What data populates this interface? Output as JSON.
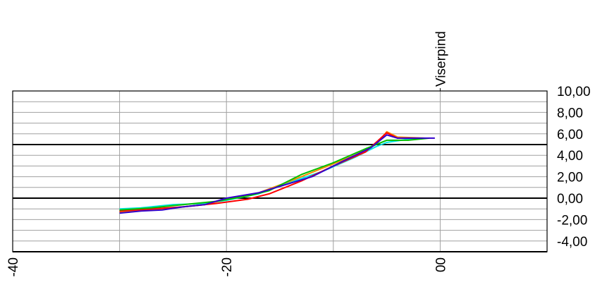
{
  "chart_data": {
    "type": "line",
    "title": "",
    "xlabel": "",
    "ylabel": "",
    "xlim": [
      -40,
      10
    ],
    "ylim": [
      -5,
      10
    ],
    "x_ticks": [
      {
        "value": -40,
        "label": "-40"
      },
      {
        "value": -20,
        "label": "-20"
      },
      {
        "value": 0,
        "label": "00"
      }
    ],
    "y_ticks": [
      {
        "value": 10,
        "label": "10,00"
      },
      {
        "value": 8,
        "label": "8,00"
      },
      {
        "value": 6,
        "label": "6,00"
      },
      {
        "value": 4,
        "label": "4,00"
      },
      {
        "value": 2,
        "label": "2,00"
      },
      {
        "value": 0,
        "label": "0,00"
      },
      {
        "value": -2,
        "label": "-2,00"
      },
      {
        "value": -4,
        "label": "-4,00"
      }
    ],
    "bold_y_lines": [
      5,
      0,
      -5
    ],
    "vertical_marker": {
      "x": 0,
      "label": "Viserpind"
    },
    "grid": true,
    "series": [
      {
        "color": "#00e5e5",
        "points": [
          [
            -30,
            -1.0
          ],
          [
            -28,
            -0.9
          ],
          [
            -25,
            -0.6
          ],
          [
            -22,
            -0.5
          ],
          [
            -20,
            -0.2
          ],
          [
            -17,
            0.4
          ],
          [
            -14,
            1.5
          ],
          [
            -11,
            2.5
          ],
          [
            -8,
            3.8
          ],
          [
            -6,
            4.8
          ],
          [
            -5,
            5.2
          ],
          [
            -3,
            5.5
          ],
          [
            -2,
            5.6
          ]
        ]
      },
      {
        "color": "#ff8c00",
        "points": [
          [
            -30,
            -1.3
          ],
          [
            -27,
            -1.1
          ],
          [
            -24,
            -0.8
          ],
          [
            -22,
            -0.6
          ],
          [
            -20,
            -0.1
          ],
          [
            -17,
            0.5
          ],
          [
            -14,
            1.6
          ],
          [
            -11,
            2.8
          ],
          [
            -8,
            4.0
          ],
          [
            -6,
            5.0
          ],
          [
            -5,
            6.2
          ],
          [
            -4,
            5.7
          ],
          [
            -1.5,
            5.6
          ]
        ]
      },
      {
        "color": "#ff0000",
        "points": [
          [
            -30,
            -1.2
          ],
          [
            -27,
            -1.0
          ],
          [
            -24,
            -0.8
          ],
          [
            -21,
            -0.5
          ],
          [
            -18,
            -0.1
          ],
          [
            -16,
            0.4
          ],
          [
            -13,
            1.6
          ],
          [
            -10,
            3.0
          ],
          [
            -7,
            4.3
          ],
          [
            -5,
            6.1
          ],
          [
            -4,
            5.6
          ],
          [
            -2,
            5.6
          ]
        ]
      },
      {
        "color": "#00c000",
        "points": [
          [
            -30,
            -1.1
          ],
          [
            -27,
            -0.9
          ],
          [
            -24,
            -0.6
          ],
          [
            -21,
            -0.3
          ],
          [
            -18,
            0.2
          ],
          [
            -16,
            0.7
          ],
          [
            -13,
            2.2
          ],
          [
            -10,
            3.3
          ],
          [
            -7,
            4.6
          ],
          [
            -5,
            5.4
          ],
          [
            -3,
            5.4
          ],
          [
            -1,
            5.6
          ]
        ]
      },
      {
        "color": "#3300cc",
        "points": [
          [
            -30,
            -1.4
          ],
          [
            -28,
            -1.2
          ],
          [
            -26,
            -1.1
          ],
          [
            -24,
            -0.8
          ],
          [
            -22,
            -0.6
          ],
          [
            -20,
            0.0
          ],
          [
            -17,
            0.5
          ],
          [
            -12,
            2.0
          ],
          [
            -9,
            3.5
          ],
          [
            -6.5,
            4.7
          ],
          [
            -5,
            5.9
          ],
          [
            -4,
            5.6
          ],
          [
            -1.5,
            5.6
          ],
          [
            -0.5,
            5.6
          ]
        ]
      }
    ]
  }
}
